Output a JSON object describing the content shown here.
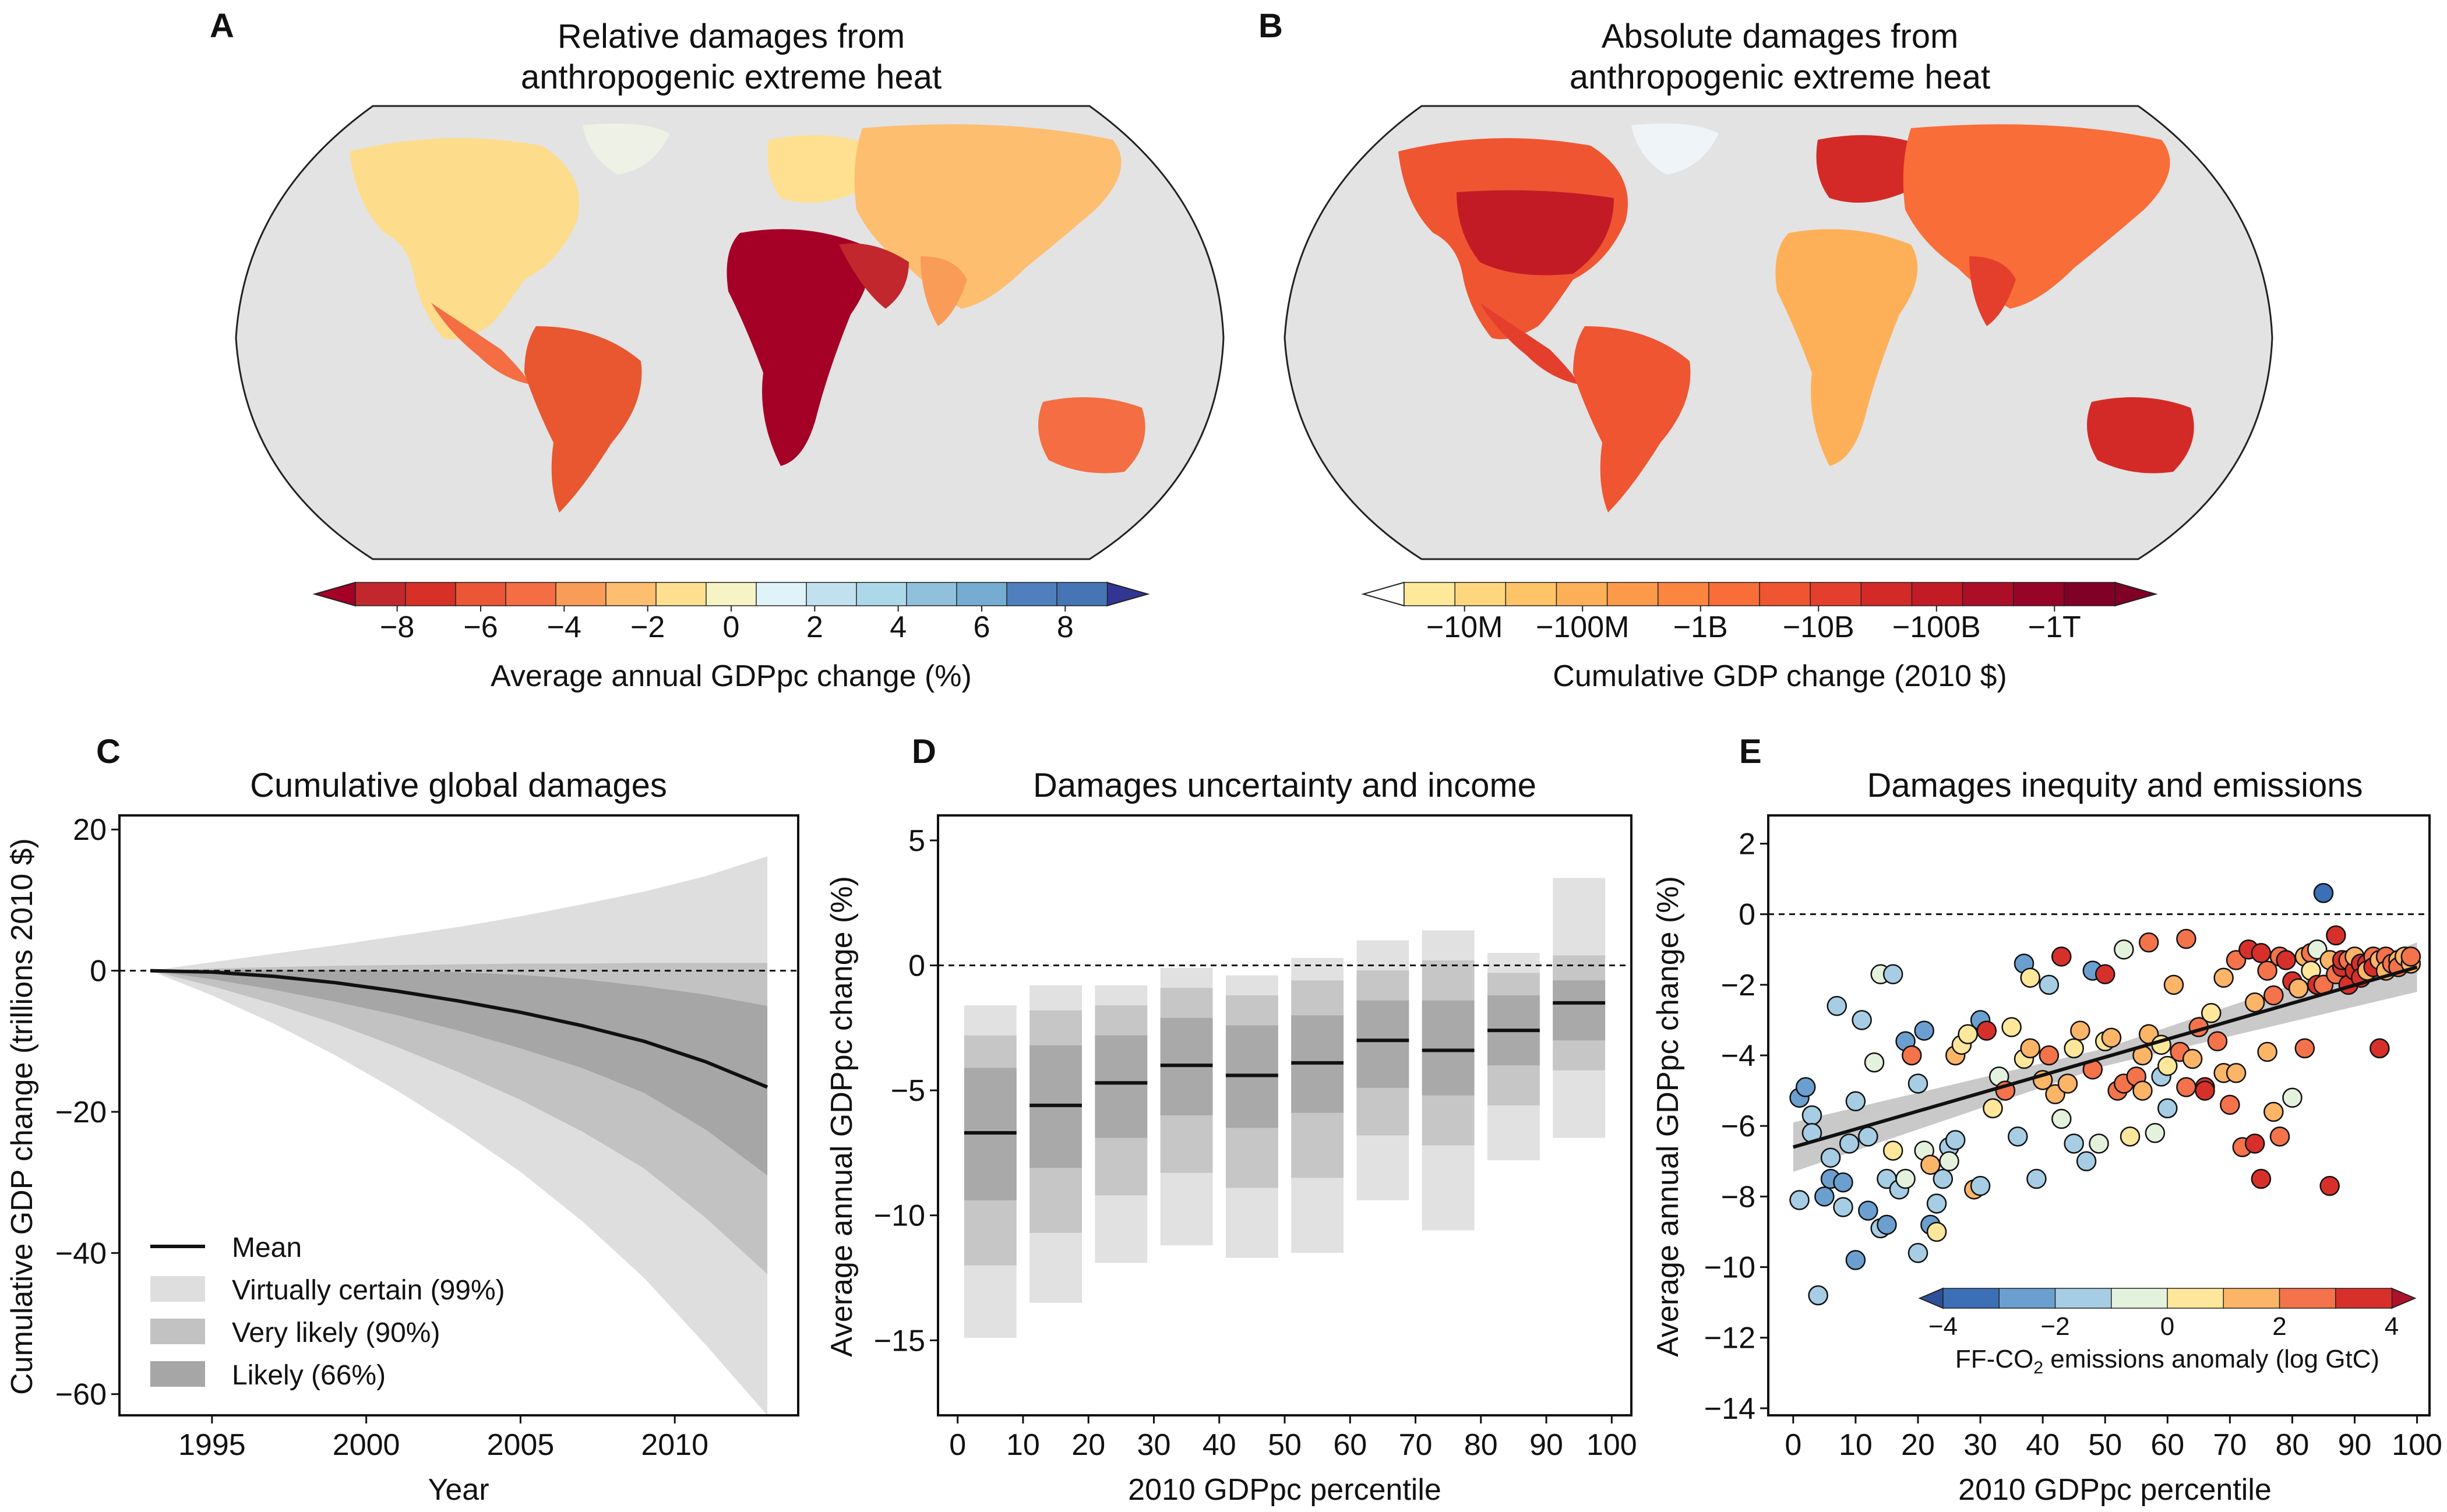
{
  "panels": {
    "A": {
      "letter": "A",
      "title_line1": "Relative damages from",
      "title_line2": "anthropogenic extreme heat",
      "colorbar_ticks": [
        "−8",
        "−6",
        "−4",
        "−2",
        "0",
        "2",
        "4",
        "6",
        "8"
      ],
      "colorbar_label": "Average annual GDPpc change (%)",
      "colors": [
        "#a50026",
        "#c1272d",
        "#d73027",
        "#ea5636",
        "#f46d43",
        "#f99c58",
        "#fdbe70",
        "#fee090",
        "#f6f4c4",
        "#e0f3f8",
        "#c2e1ee",
        "#abd9e9",
        "#90c0dc",
        "#74add1",
        "#4f7fbd",
        "#4575b4",
        "#313695"
      ]
    },
    "B": {
      "letter": "B",
      "title_line1": "Absolute damages from",
      "title_line2": "anthropogenic extreme heat",
      "colorbar_ticks": [
        "−10M",
        "−100M",
        "−1B",
        "−10B",
        "−100B",
        "−1T"
      ],
      "colorbar_label": "Cumulative GDP change (2010 $)",
      "colors": [
        "#fffcd8",
        "#fee99a",
        "#fed67e",
        "#fec467",
        "#fdb058",
        "#fd9a4a",
        "#fc8540",
        "#f86d38",
        "#f05532",
        "#e43f2c",
        "#d42a27",
        "#c21b26",
        "#ad0e27",
        "#960527",
        "#800026"
      ]
    },
    "C": {
      "letter": "C",
      "title": "Cumulative global damages",
      "xlabel": "Year",
      "ylabel": "Cumulative GDP change (trillions 2010 $)",
      "legend": [
        "Mean",
        "Virtually certain (99%)",
        "Very likely (90%)",
        "Likely (66%)"
      ]
    },
    "D": {
      "letter": "D",
      "title": "Damages uncertainty and income",
      "xlabel": "2010 GDPpc percentile",
      "ylabel": "Average annual GDPpc change (%)"
    },
    "E": {
      "letter": "E",
      "title": "Damages inequity and emissions",
      "xlabel": "2010 GDPpc percentile",
      "ylabel": "Average annual GDPpc change (%)",
      "colorbar_ticks": [
        "−4",
        "−2",
        "0",
        "2",
        "4"
      ],
      "colorbar_label_main": "FF-CO",
      "colorbar_label_sub": "2",
      "colorbar_label_rest": " emissions anomaly (log GtC)",
      "colors": [
        "#3b6fb6",
        "#6b9fd0",
        "#a6cde4",
        "#e4f1dc",
        "#fee79a",
        "#fcb467",
        "#f4734a",
        "#d7302b"
      ]
    }
  },
  "chart_data": [
    {
      "panel": "C",
      "type": "area",
      "title": "Cumulative global damages",
      "xlabel": "Year",
      "ylabel": "Cumulative GDP change (trillions 2010 $)",
      "xlim": [
        1992,
        2014
      ],
      "ylim": [
        -63,
        22
      ],
      "xticks": [
        1995,
        2000,
        2005,
        2010
      ],
      "yticks": [
        -60,
        -40,
        -20,
        0,
        20
      ],
      "x": [
        1993,
        1995,
        1997,
        1999,
        2001,
        2003,
        2005,
        2007,
        2009,
        2011,
        2013
      ],
      "series": [
        {
          "name": "Mean",
          "values": [
            0,
            -0.2,
            -0.8,
            -1.7,
            -2.9,
            -4.3,
            -5.9,
            -7.8,
            -10.0,
            -12.9,
            -16.5
          ]
        },
        {
          "name": "Virtually certain (99%)",
          "lower": [
            0,
            -3.5,
            -7.5,
            -12,
            -17,
            -22.5,
            -28.5,
            -35.5,
            -43.5,
            -53,
            -63
          ],
          "upper": [
            0,
            1.2,
            2.4,
            3.6,
            4.9,
            6.2,
            7.7,
            9.4,
            11.2,
            13.4,
            16.2
          ]
        },
        {
          "name": "Very likely (90%)",
          "lower": [
            0,
            -2.2,
            -4.7,
            -7.5,
            -10.8,
            -14.4,
            -18.3,
            -22.8,
            -28,
            -35,
            -43
          ],
          "upper": [
            0,
            0.3,
            0.5,
            0.7,
            0.8,
            0.9,
            1.0,
            1.0,
            1.1,
            1.1,
            1.1
          ]
        },
        {
          "name": "Likely (66%)",
          "lower": [
            0,
            -1.2,
            -2.7,
            -4.4,
            -6.3,
            -8.5,
            -11,
            -13.8,
            -17.3,
            -22.5,
            -29
          ],
          "upper": [
            0,
            0.1,
            0.1,
            0.1,
            0,
            -0.2,
            -0.6,
            -1.2,
            -2.2,
            -3.4,
            -5
          ]
        }
      ]
    },
    {
      "panel": "D",
      "type": "bar",
      "title": "Damages uncertainty and income",
      "xlabel": "2010 GDPpc percentile",
      "ylabel": "Average annual GDPpc change (%)",
      "ylim": [
        -18,
        6
      ],
      "yticks": [
        -15,
        -10,
        -5,
        0,
        5
      ],
      "xticks": [
        0,
        10,
        20,
        30,
        40,
        50,
        60,
        70,
        80,
        90,
        100
      ],
      "bins": [
        [
          0,
          10
        ],
        [
          10,
          20
        ],
        [
          20,
          30
        ],
        [
          30,
          40
        ],
        [
          40,
          50
        ],
        [
          50,
          60
        ],
        [
          60,
          70
        ],
        [
          70,
          80
        ],
        [
          80,
          90
        ],
        [
          90,
          100
        ]
      ],
      "mean": [
        -6.7,
        -5.6,
        -4.7,
        -4.0,
        -4.4,
        -3.9,
        -3.0,
        -3.4,
        -2.6,
        -1.5
      ],
      "range99": [
        [
          -14.9,
          -1.6
        ],
        [
          -13.5,
          -0.8
        ],
        [
          -11.9,
          -0.8
        ],
        [
          -11.2,
          -0.1
        ],
        [
          -11.7,
          -0.4
        ],
        [
          -11.5,
          0.3
        ],
        [
          -9.4,
          1.0
        ],
        [
          -10.6,
          1.4
        ],
        [
          -7.8,
          0.5
        ],
        [
          -6.9,
          3.5
        ]
      ],
      "range90": [
        [
          -12.0,
          -2.8
        ],
        [
          -10.7,
          -1.8
        ],
        [
          -9.2,
          -1.6
        ],
        [
          -8.3,
          -0.9
        ],
        [
          -8.9,
          -1.2
        ],
        [
          -8.5,
          -0.6
        ],
        [
          -6.8,
          -0.2
        ],
        [
          -7.2,
          0.2
        ],
        [
          -5.6,
          -0.3
        ],
        [
          -4.2,
          0.4
        ]
      ],
      "range66": [
        [
          -9.4,
          -4.1
        ],
        [
          -8.1,
          -3.2
        ],
        [
          -6.9,
          -2.8
        ],
        [
          -6.0,
          -2.1
        ],
        [
          -6.5,
          -2.4
        ],
        [
          -5.9,
          -2.0
        ],
        [
          -4.9,
          -1.4
        ],
        [
          -5.2,
          -1.4
        ],
        [
          -4.0,
          -1.2
        ],
        [
          -3.0,
          -0.6
        ]
      ]
    },
    {
      "panel": "E",
      "type": "scatter",
      "title": "Damages inequity and emissions",
      "xlabel": "2010 GDPpc percentile",
      "ylabel": "Average annual GDPpc change (%)",
      "xlim": [
        -4,
        102
      ],
      "ylim": [
        -14.2,
        2.8
      ],
      "xticks": [
        0,
        10,
        20,
        30,
        40,
        50,
        60,
        70,
        80,
        90,
        100
      ],
      "yticks": [
        -14,
        -12,
        -10,
        -8,
        -6,
        -4,
        -2,
        0,
        2
      ],
      "regression": {
        "x": [
          0,
          100
        ],
        "y": [
          -6.6,
          -1.5
        ]
      },
      "points": [
        [
          1,
          -5.2,
          -3
        ],
        [
          1,
          -8.1,
          -2
        ],
        [
          2,
          -4.9,
          -3
        ],
        [
          3,
          -5.7,
          -2
        ],
        [
          3,
          -6.2,
          -2
        ],
        [
          4,
          -10.8,
          -2
        ],
        [
          5,
          -8.0,
          -3
        ],
        [
          6,
          -7.5,
          -3
        ],
        [
          6,
          -6.9,
          -2
        ],
        [
          7,
          -2.6,
          -2
        ],
        [
          8,
          -7.6,
          -3
        ],
        [
          8,
          -8.3,
          -2
        ],
        [
          9,
          -6.5,
          -2
        ],
        [
          10,
          -9.8,
          -3
        ],
        [
          10,
          -5.3,
          -2
        ],
        [
          11,
          -3.0,
          -2
        ],
        [
          12,
          -8.4,
          -3
        ],
        [
          12,
          -6.3,
          -2
        ],
        [
          13,
          -4.2,
          -1
        ],
        [
          14,
          -1.7,
          -1
        ],
        [
          14,
          -8.9,
          -2
        ],
        [
          15,
          -8.8,
          -3
        ],
        [
          15,
          -7.5,
          -2
        ],
        [
          16,
          -6.7,
          0
        ],
        [
          16,
          -1.7,
          -2
        ],
        [
          17,
          -7.8,
          -2
        ],
        [
          18,
          -3.6,
          -3
        ],
        [
          18,
          -7.5,
          -1
        ],
        [
          19,
          -4.0,
          2
        ],
        [
          20,
          -9.6,
          -2
        ],
        [
          20,
          -4.8,
          -2
        ],
        [
          21,
          -3.3,
          -3
        ],
        [
          21,
          -6.7,
          -1
        ],
        [
          22,
          -7.1,
          1
        ],
        [
          22,
          -8.8,
          -3
        ],
        [
          23,
          -9.0,
          0
        ],
        [
          23,
          -8.2,
          -2
        ],
        [
          24,
          -7.5,
          -2
        ],
        [
          25,
          -6.6,
          -2
        ],
        [
          25,
          -7.0,
          -1
        ],
        [
          26,
          -6.4,
          -2
        ],
        [
          26,
          -4.0,
          1
        ],
        [
          27,
          -3.7,
          0
        ],
        [
          28,
          -3.4,
          0
        ],
        [
          29,
          -7.8,
          1
        ],
        [
          30,
          -3.0,
          -3
        ],
        [
          30,
          -7.7,
          -2
        ],
        [
          31,
          -3.3,
          4
        ],
        [
          32,
          -5.5,
          0
        ],
        [
          33,
          -4.6,
          -1
        ],
        [
          34,
          -5.0,
          2
        ],
        [
          35,
          -3.2,
          0
        ],
        [
          36,
          -6.3,
          -2
        ],
        [
          37,
          -1.4,
          -3
        ],
        [
          37,
          -4.1,
          0
        ],
        [
          38,
          -3.8,
          1
        ],
        [
          38,
          -1.8,
          0
        ],
        [
          39,
          -7.5,
          -2
        ],
        [
          40,
          -4.7,
          1
        ],
        [
          41,
          -2.0,
          -2
        ],
        [
          41,
          -4.0,
          2
        ],
        [
          42,
          -5.1,
          1
        ],
        [
          43,
          -1.2,
          3
        ],
        [
          43,
          -5.8,
          -1
        ],
        [
          44,
          -4.8,
          1
        ],
        [
          45,
          -3.8,
          0
        ],
        [
          45,
          -6.5,
          -2
        ],
        [
          46,
          -3.3,
          1
        ],
        [
          47,
          -7.0,
          -2
        ],
        [
          48,
          -1.6,
          -3
        ],
        [
          48,
          -4.4,
          2
        ],
        [
          49,
          -6.5,
          -1
        ],
        [
          50,
          -1.7,
          4
        ],
        [
          50,
          -3.6,
          0
        ],
        [
          51,
          -3.5,
          1
        ],
        [
          52,
          -5.0,
          2
        ],
        [
          53,
          -4.8,
          2
        ],
        [
          53,
          -1.0,
          -1
        ],
        [
          54,
          -6.3,
          0
        ],
        [
          55,
          -4.6,
          2
        ],
        [
          56,
          -5.0,
          1
        ],
        [
          56,
          -4.0,
          1
        ],
        [
          57,
          -3.4,
          1
        ],
        [
          57,
          -0.8,
          2
        ],
        [
          58,
          -6.2,
          -1
        ],
        [
          59,
          -4.6,
          -2
        ],
        [
          59,
          -3.7,
          0
        ],
        [
          60,
          -5.5,
          -2
        ],
        [
          60,
          -4.3,
          0
        ],
        [
          61,
          -2.0,
          1
        ],
        [
          62,
          -3.9,
          2
        ],
        [
          63,
          -4.9,
          2
        ],
        [
          63,
          -0.7,
          2
        ],
        [
          64,
          -4.1,
          1
        ],
        [
          65,
          -3.2,
          2
        ],
        [
          66,
          -4.9,
          3
        ],
        [
          66,
          -5.0,
          3
        ],
        [
          67,
          -2.8,
          0
        ],
        [
          68,
          -3.6,
          2
        ],
        [
          69,
          -4.5,
          1
        ],
        [
          69,
          -1.8,
          1
        ],
        [
          70,
          -5.4,
          2
        ],
        [
          71,
          -1.3,
          2
        ],
        [
          71,
          -4.5,
          1
        ],
        [
          72,
          -6.6,
          2
        ],
        [
          73,
          -1.0,
          3
        ],
        [
          74,
          -2.5,
          1
        ],
        [
          74,
          -6.5,
          3
        ],
        [
          75,
          -1.1,
          3
        ],
        [
          75,
          -7.5,
          4
        ],
        [
          76,
          -3.9,
          1
        ],
        [
          76,
          -1.6,
          2
        ],
        [
          77,
          -2.3,
          2
        ],
        [
          77,
          -5.6,
          1
        ],
        [
          78,
          -1.2,
          2
        ],
        [
          78,
          -6.3,
          2
        ],
        [
          79,
          -1.3,
          3
        ],
        [
          80,
          -1.9,
          3
        ],
        [
          80,
          -5.2,
          -1
        ],
        [
          81,
          -2.1,
          1
        ],
        [
          82,
          -3.8,
          2
        ],
        [
          82,
          -1.2,
          1
        ],
        [
          83,
          -1.1,
          2
        ],
        [
          83,
          -1.6,
          0
        ],
        [
          84,
          -2.0,
          3
        ],
        [
          84,
          -1.0,
          -1
        ],
        [
          85,
          0.6,
          -4
        ],
        [
          85,
          -2.0,
          2
        ],
        [
          86,
          -1.3,
          1
        ],
        [
          86,
          -7.7,
          3
        ],
        [
          87,
          -0.6,
          3
        ],
        [
          87,
          -1.7,
          2
        ],
        [
          88,
          -1.5,
          3
        ],
        [
          88,
          -1.3,
          4
        ],
        [
          89,
          -2.0,
          3
        ],
        [
          89,
          -1.3,
          2
        ],
        [
          90,
          -1.6,
          4
        ],
        [
          90,
          -1.2,
          1
        ],
        [
          91,
          -1.4,
          3
        ],
        [
          91,
          -1.8,
          4
        ],
        [
          92,
          -1.4,
          4
        ],
        [
          92,
          -1.6,
          1
        ],
        [
          93,
          -1.2,
          2
        ],
        [
          93,
          -1.5,
          3
        ],
        [
          94,
          -3.8,
          4
        ],
        [
          94,
          -1.3,
          1
        ],
        [
          95,
          -1.2,
          2
        ],
        [
          95,
          -1.6,
          1
        ],
        [
          96,
          -1.4,
          2
        ],
        [
          97,
          -1.3,
          1
        ],
        [
          97,
          -1.5,
          2
        ],
        [
          98,
          -1.2,
          1
        ],
        [
          99,
          -1.4,
          1
        ],
        [
          99,
          -1.2,
          2
        ]
      ]
    }
  ]
}
